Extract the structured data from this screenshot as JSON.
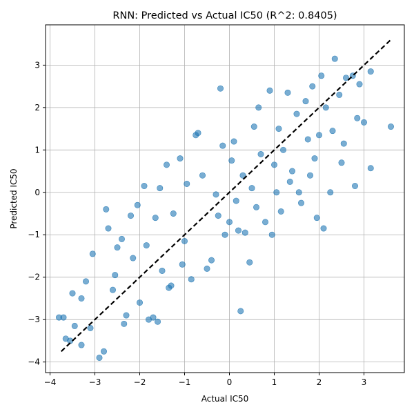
{
  "chart_data": {
    "type": "scatter",
    "title": "RNN: Predicted vs Actual IC50 (R^2: 0.8405)",
    "xlabel": "Actual IC50",
    "ylabel": "Predicted IC50",
    "xlim": [
      -4.1,
      3.9
    ],
    "ylim": [
      -4.25,
      3.95
    ],
    "xticks": [
      -4,
      -3,
      -2,
      -1,
      0,
      1,
      2,
      3
    ],
    "yticks": [
      -4,
      -3,
      -2,
      -1,
      0,
      1,
      2,
      3
    ],
    "grid": true,
    "point_color": "#1f77b4",
    "point_alpha": 0.6,
    "reference_line": {
      "style": "dashed",
      "color": "#000000",
      "x": [
        -3.75,
        3.6
      ],
      "y": [
        -3.75,
        3.6
      ]
    },
    "series": [
      {
        "values": [
          [
            -3.8,
            -2.95
          ],
          [
            -3.7,
            -2.95
          ],
          [
            -3.65,
            -3.45
          ],
          [
            -3.55,
            -3.5
          ],
          [
            -3.5,
            -2.38
          ],
          [
            -3.45,
            -3.15
          ],
          [
            -3.3,
            -3.6
          ],
          [
            -3.3,
            -2.5
          ],
          [
            -3.2,
            -2.1
          ],
          [
            -3.1,
            -3.2
          ],
          [
            -3.05,
            -1.45
          ],
          [
            -2.9,
            -3.9
          ],
          [
            -2.8,
            -3.75
          ],
          [
            -2.75,
            -0.4
          ],
          [
            -2.7,
            -0.85
          ],
          [
            -2.6,
            -2.3
          ],
          [
            -2.55,
            -1.95
          ],
          [
            -2.5,
            -1.3
          ],
          [
            -2.4,
            -1.1
          ],
          [
            -2.35,
            -3.1
          ],
          [
            -2.3,
            -2.9
          ],
          [
            -2.2,
            -0.55
          ],
          [
            -2.15,
            -1.55
          ],
          [
            -2.05,
            -0.3
          ],
          [
            -2.0,
            -2.6
          ],
          [
            -1.9,
            0.15
          ],
          [
            -1.85,
            -1.25
          ],
          [
            -1.8,
            -3.0
          ],
          [
            -1.7,
            -2.95
          ],
          [
            -1.65,
            -0.6
          ],
          [
            -1.6,
            -3.05
          ],
          [
            -1.55,
            0.1
          ],
          [
            -1.5,
            -1.85
          ],
          [
            -1.4,
            0.65
          ],
          [
            -1.35,
            -2.25
          ],
          [
            -1.3,
            -2.2
          ],
          [
            -1.25,
            -0.5
          ],
          [
            -1.1,
            0.8
          ],
          [
            -1.05,
            -1.7
          ],
          [
            -1.0,
            -1.15
          ],
          [
            -0.95,
            0.2
          ],
          [
            -0.85,
            -2.05
          ],
          [
            -0.75,
            1.35
          ],
          [
            -0.7,
            1.4
          ],
          [
            -0.6,
            0.4
          ],
          [
            -0.5,
            -1.8
          ],
          [
            -0.4,
            -1.6
          ],
          [
            -0.3,
            -0.05
          ],
          [
            -0.25,
            -0.55
          ],
          [
            -0.2,
            2.45
          ],
          [
            -0.15,
            1.1
          ],
          [
            -0.1,
            -1.0
          ],
          [
            0.0,
            -0.7
          ],
          [
            0.05,
            0.75
          ],
          [
            0.1,
            1.2
          ],
          [
            0.15,
            -0.2
          ],
          [
            0.2,
            -0.9
          ],
          [
            0.25,
            -2.8
          ],
          [
            0.3,
            0.4
          ],
          [
            0.35,
            -0.95
          ],
          [
            0.45,
            -1.65
          ],
          [
            0.5,
            0.1
          ],
          [
            0.55,
            1.55
          ],
          [
            0.6,
            -0.35
          ],
          [
            0.65,
            2.0
          ],
          [
            0.7,
            0.9
          ],
          [
            0.8,
            -0.7
          ],
          [
            0.9,
            2.4
          ],
          [
            0.95,
            -1.0
          ],
          [
            1.0,
            0.65
          ],
          [
            1.05,
            0.0
          ],
          [
            1.1,
            1.5
          ],
          [
            1.15,
            -0.45
          ],
          [
            1.2,
            1.0
          ],
          [
            1.3,
            2.35
          ],
          [
            1.35,
            0.25
          ],
          [
            1.4,
            0.5
          ],
          [
            1.5,
            1.85
          ],
          [
            1.55,
            0.0
          ],
          [
            1.6,
            -0.25
          ],
          [
            1.7,
            2.15
          ],
          [
            1.75,
            1.25
          ],
          [
            1.8,
            0.4
          ],
          [
            1.85,
            2.5
          ],
          [
            1.9,
            0.8
          ],
          [
            1.95,
            -0.6
          ],
          [
            2.0,
            1.35
          ],
          [
            2.05,
            2.75
          ],
          [
            2.1,
            -0.85
          ],
          [
            2.15,
            2.0
          ],
          [
            2.25,
            0.0
          ],
          [
            2.3,
            1.45
          ],
          [
            2.35,
            3.15
          ],
          [
            2.45,
            2.3
          ],
          [
            2.5,
            0.7
          ],
          [
            2.55,
            1.15
          ],
          [
            2.6,
            2.7
          ],
          [
            2.75,
            2.75
          ],
          [
            2.8,
            0.15
          ],
          [
            2.85,
            1.75
          ],
          [
            3.0,
            1.65
          ],
          [
            3.15,
            0.57
          ],
          [
            3.6,
            1.55
          ],
          [
            2.9,
            2.55
          ],
          [
            3.15,
            2.85
          ]
        ]
      }
    ]
  }
}
